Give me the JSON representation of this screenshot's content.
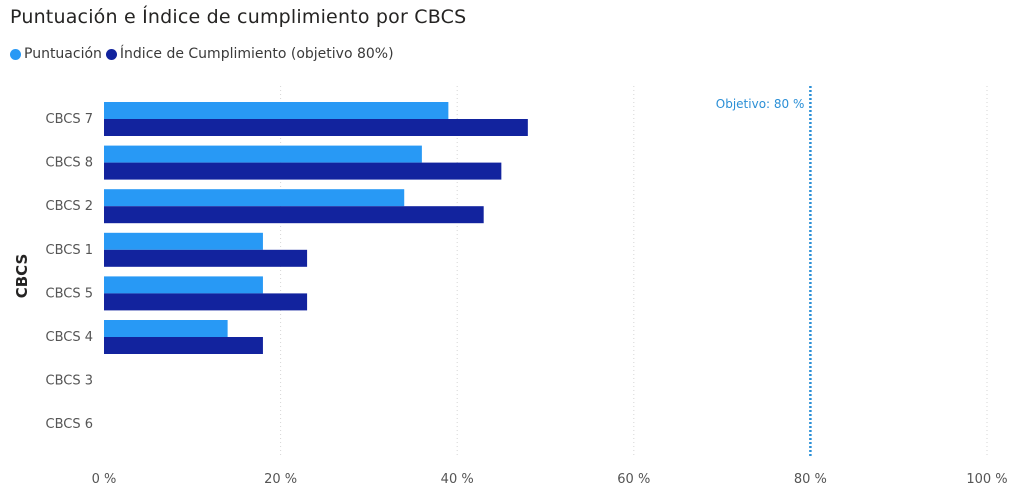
{
  "chart_data": {
    "type": "bar",
    "orientation": "horizontal",
    "title": "Puntuación e Índice de cumplimiento por CBCS",
    "ylabel": "CBCS",
    "xlabel": "",
    "categories": [
      "CBCS 7",
      "CBCS 8",
      "CBCS 2",
      "CBCS 1",
      "CBCS 5",
      "CBCS 4",
      "CBCS 3",
      "CBCS 6"
    ],
    "series": [
      {
        "name": "Puntuación",
        "color": "#2899f5",
        "values": [
          39,
          36,
          34,
          18,
          18,
          14,
          0,
          0
        ]
      },
      {
        "name": "Índice de Cumplimiento (objetivo 80%)",
        "color": "#12239e",
        "values": [
          48,
          45,
          43,
          23,
          23,
          18,
          0,
          0
        ]
      }
    ],
    "xlim": [
      0,
      100
    ],
    "xticks": [
      "0 %",
      "20 %",
      "40 %",
      "60 %",
      "80 %",
      "100 %"
    ],
    "reference_line": {
      "value": 80,
      "label": "Objetivo: 80 %",
      "color": "#2b8fd6"
    },
    "grid": true,
    "legend_position": "top-left"
  }
}
